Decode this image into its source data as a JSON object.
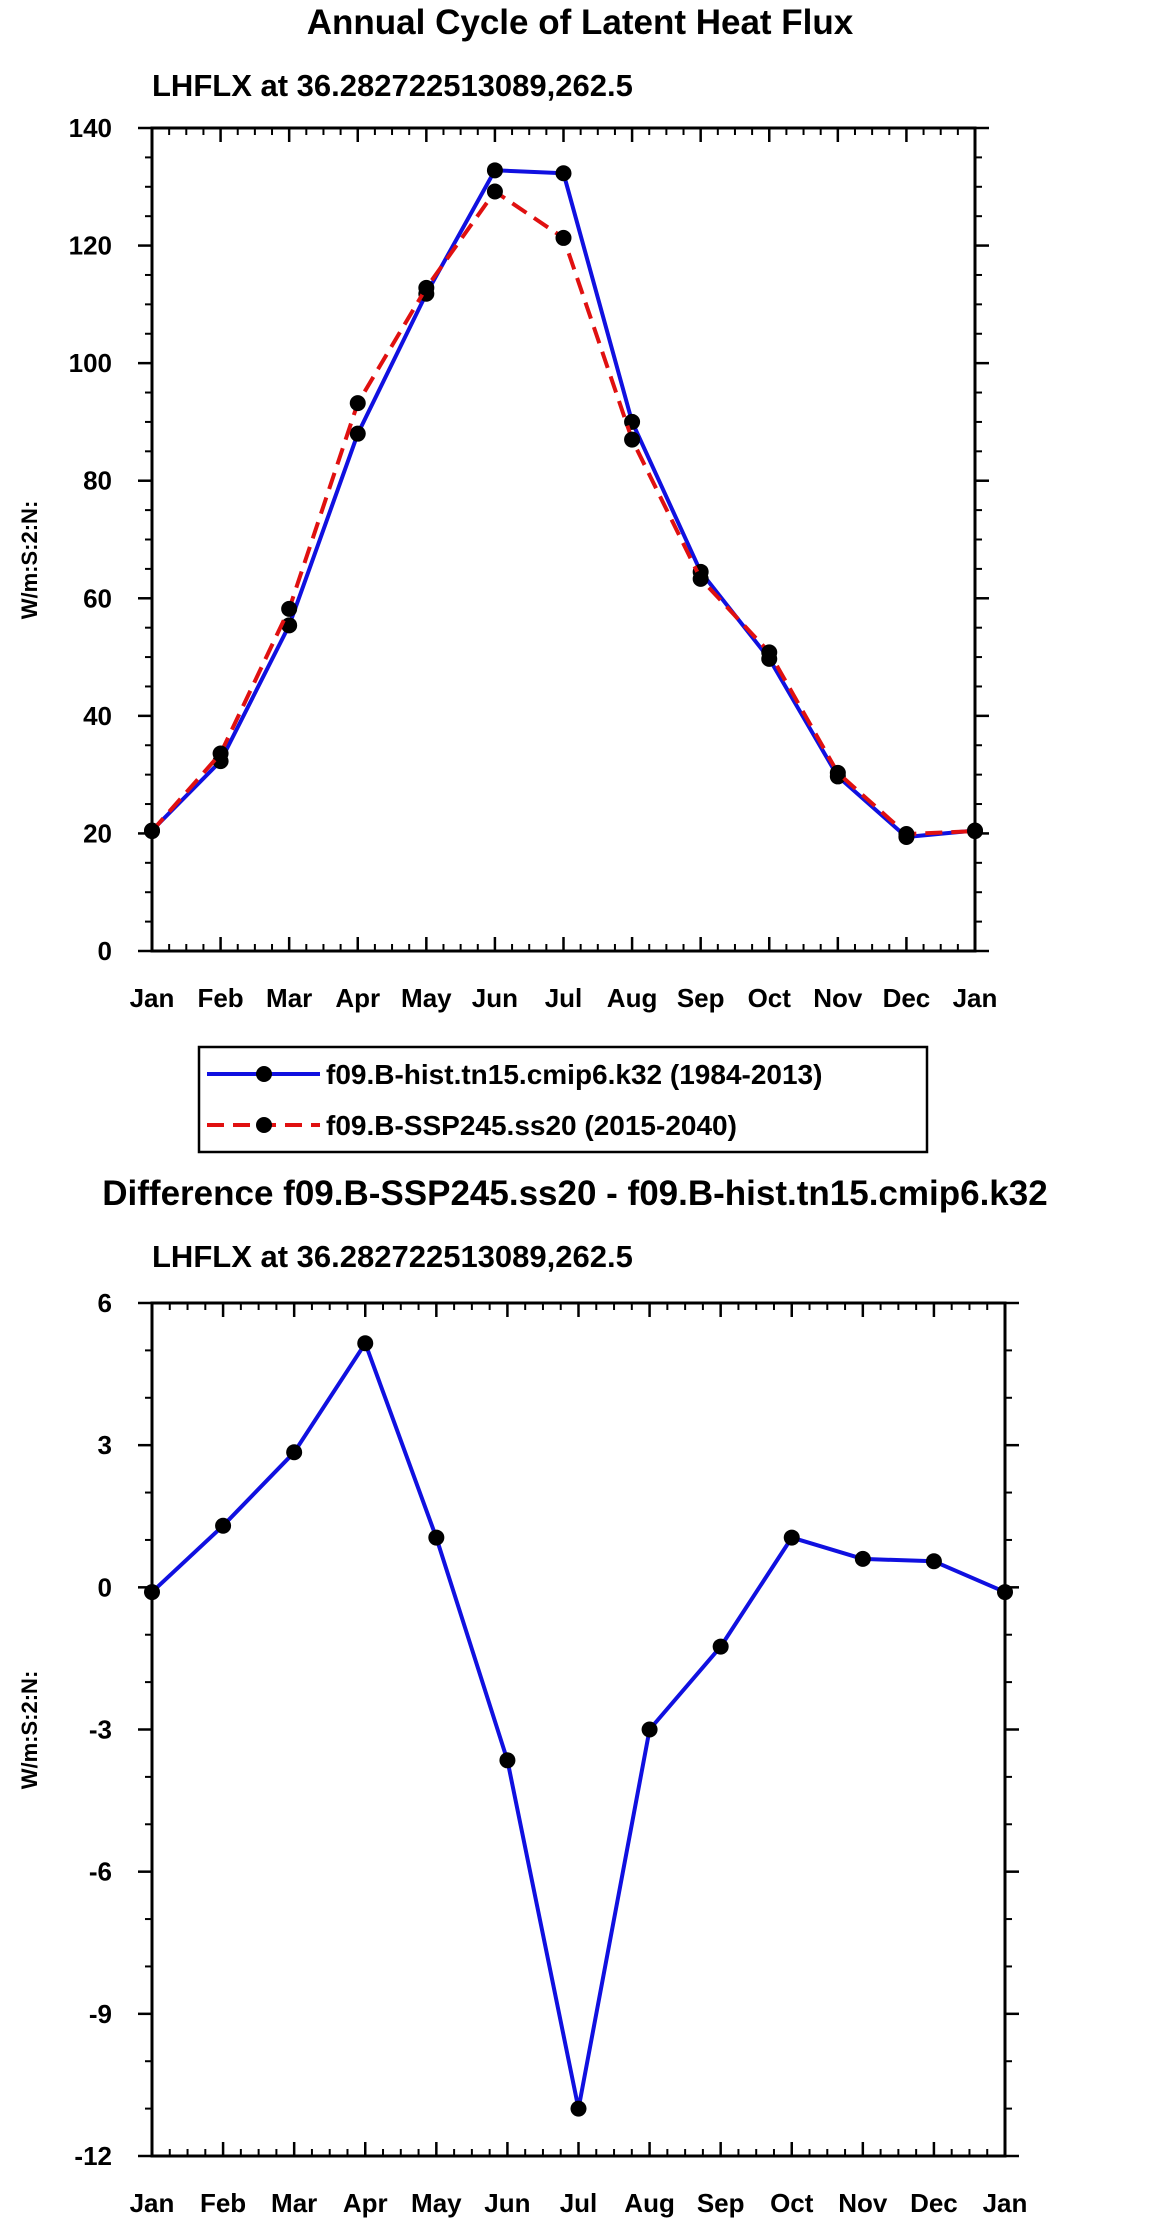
{
  "chart_data": [
    {
      "type": "line",
      "title": "Annual Cycle of Latent Heat Flux",
      "subtitle": "LHFLX at 36.282722513089,262.5",
      "xlabel": "",
      "ylabel": "W/m:S:2:N:",
      "categories": [
        "Jan",
        "Feb",
        "Mar",
        "Apr",
        "May",
        "Jun",
        "Jul",
        "Aug",
        "Sep",
        "Oct",
        "Nov",
        "Dec",
        "Jan"
      ],
      "ylim": [
        0,
        140
      ],
      "yticks": [
        0,
        20,
        40,
        60,
        80,
        100,
        120,
        140
      ],
      "ytick_labels": [
        "0",
        "20",
        "40",
        "60",
        "80",
        "100",
        "120",
        "140"
      ],
      "yminor_step": 5,
      "xminor_per_major": 4,
      "legend_position": "bottom",
      "series": [
        {
          "name": "f09.B-hist.tn15.cmip6.k32 (1984-2013)",
          "color": "#1010e0",
          "dash": "solid",
          "values": [
            20.5,
            32.3,
            55.4,
            88.0,
            111.8,
            132.8,
            132.3,
            90.0,
            64.5,
            49.7,
            29.7,
            19.4,
            20.5
          ]
        },
        {
          "name": "f09.B-SSP245.ss20 (2015-2040)",
          "color": "#e01010",
          "dash": "dashed",
          "values": [
            20.4,
            33.6,
            58.2,
            93.2,
            112.8,
            129.2,
            121.3,
            87.0,
            63.3,
            50.8,
            30.3,
            19.9,
            20.4
          ]
        }
      ]
    },
    {
      "type": "line",
      "title": "Difference f09.B-SSP245.ss20 - f09.B-hist.tn15.cmip6.k32",
      "subtitle": "LHFLX at 36.282722513089,262.5",
      "xlabel": "",
      "ylabel": "W/m:S:2:N:",
      "categories": [
        "Jan",
        "Feb",
        "Mar",
        "Apr",
        "May",
        "Jun",
        "Jul",
        "Aug",
        "Sep",
        "Oct",
        "Nov",
        "Dec",
        "Jan"
      ],
      "ylim": [
        -12,
        6
      ],
      "yticks": [
        -12,
        -9,
        -6,
        -3,
        0,
        3,
        6
      ],
      "ytick_labels": [
        "-12",
        "-9",
        "-6",
        "-3",
        "0",
        "3",
        "6"
      ],
      "yminor_step": 1,
      "xminor_per_major": 4,
      "series": [
        {
          "name": "Difference",
          "color": "#1010e0",
          "dash": "solid",
          "values": [
            -0.1,
            1.3,
            2.85,
            5.15,
            1.05,
            -3.65,
            -11.0,
            -3.0,
            -1.25,
            1.05,
            0.6,
            0.55,
            -0.1
          ]
        }
      ]
    }
  ]
}
